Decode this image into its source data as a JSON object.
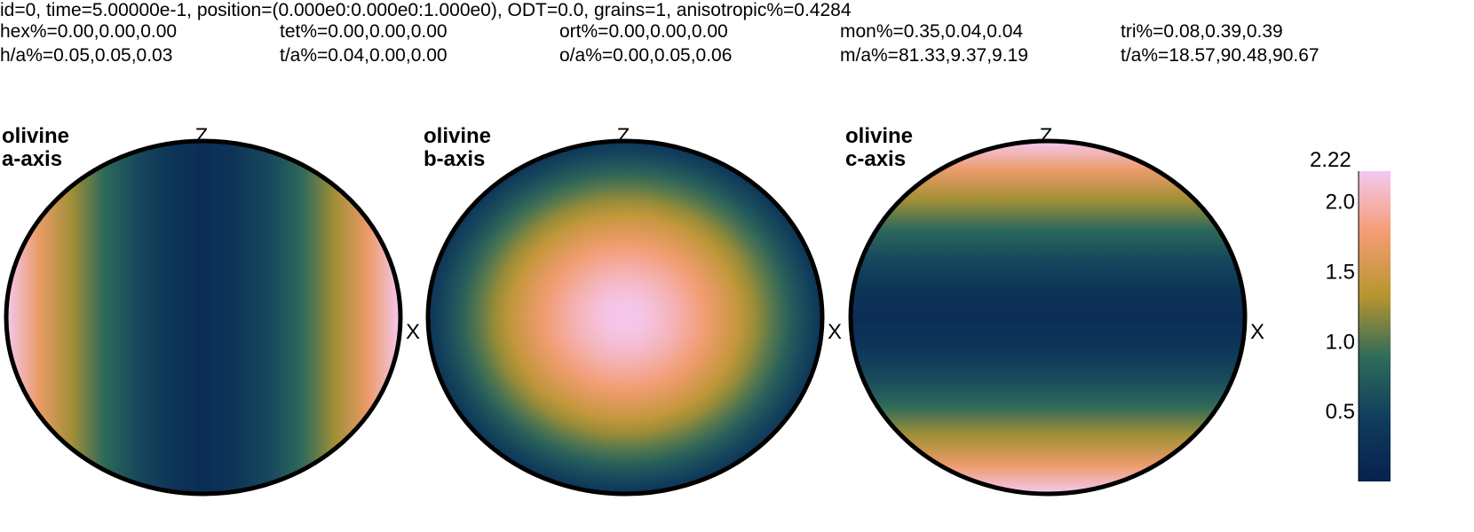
{
  "header": {
    "line1": "id=0, time=5.00000e-1, position=(0.000e0:0.000e0:1.000e0), ODT=0.0, grains=1, anisotropic%=0.4284",
    "row2": [
      "hex%=0.00,0.00,0.00",
      "tet%=0.00,0.00,0.00",
      "ort%=0.00,0.00,0.00",
      "mon%=0.35,0.04,0.04",
      "tri%=0.08,0.39,0.39"
    ],
    "row3": [
      "h/a%=0.05,0.05,0.03",
      "t/a%=0.04,0.00,0.00",
      "o/a%=0.00,0.05,0.06",
      "m/a%=81.33,9.37,9.19",
      "t/a%=18.57,90.48,90.67"
    ]
  },
  "chart_data": {
    "type": "heatmap",
    "projection": "pole-figure",
    "colormap": [
      "#08204f",
      "#0f3d5c",
      "#2f6b5a",
      "#b8962e",
      "#f39c72",
      "#f5c8f0"
    ],
    "colorbar": {
      "min": 0,
      "max": 2.22,
      "max_label": "2.22",
      "ticks": [
        {
          "value": 0.5,
          "label": "0.5"
        },
        {
          "value": 1.0,
          "label": "1.0"
        },
        {
          "value": 1.5,
          "label": "1.5"
        },
        {
          "value": 2.0,
          "label": "2.0"
        }
      ]
    },
    "axes": {
      "top": "Z",
      "right": "X"
    },
    "panels": [
      {
        "mineral": "olivine",
        "axis": "a-axis",
        "pattern": "vertical-bands",
        "center_value": 0.2,
        "edge_value": 2.22
      },
      {
        "mineral": "olivine",
        "axis": "b-axis",
        "pattern": "central-maximum",
        "center_value": 2.22,
        "edge_value": 0.3
      },
      {
        "mineral": "olivine",
        "axis": "c-axis",
        "pattern": "horizontal-bands",
        "center_value": 0.2,
        "edge_value": 2.22
      }
    ]
  }
}
